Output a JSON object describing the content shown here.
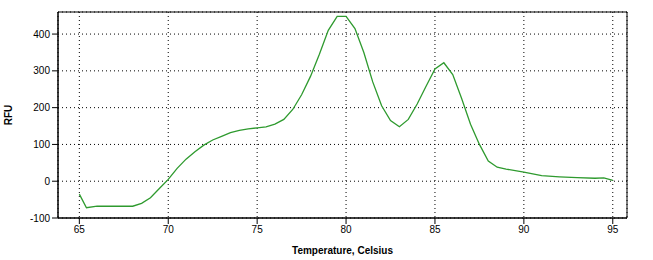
{
  "chart_data": {
    "type": "line",
    "x_label": "Temperature, Celsius",
    "y_label": "RFU",
    "x": [
      65.0,
      65.4,
      66,
      67,
      68,
      68.5,
      69,
      69.5,
      70,
      70.5,
      71,
      71.5,
      72,
      72.5,
      73,
      73.5,
      74,
      74.5,
      75,
      75.5,
      76,
      76.5,
      77,
      77.5,
      78,
      78.5,
      79,
      79.5,
      80,
      80.5,
      81,
      81.5,
      82,
      82.5,
      83,
      83.5,
      84,
      84.5,
      85,
      85.5,
      86,
      86.5,
      87,
      87.5,
      88,
      88.5,
      89,
      90,
      91,
      92,
      93,
      94,
      94.5,
      95
    ],
    "series": [
      {
        "color": "#2e9a2e",
        "values": [
          -35,
          -72,
          -68,
          -68,
          -68,
          -60,
          -45,
          -20,
          5,
          35,
          60,
          80,
          98,
          112,
          122,
          132,
          138,
          142,
          145,
          148,
          155,
          168,
          195,
          235,
          285,
          345,
          410,
          448,
          448,
          415,
          350,
          270,
          205,
          165,
          148,
          168,
          210,
          258,
          305,
          322,
          290,
          225,
          155,
          100,
          55,
          38,
          33,
          25,
          15,
          12,
          10,
          8,
          9,
          2
        ]
      }
    ],
    "xlim": [
      63.8,
      95.8
    ],
    "xticks": [
      65,
      70,
      75,
      80,
      85,
      90,
      95
    ],
    "ylim": [
      -100,
      460
    ],
    "yticks": [
      -100,
      0,
      100,
      200,
      300,
      400
    ],
    "grid": true,
    "marker": "none",
    "line_style": "solid"
  }
}
